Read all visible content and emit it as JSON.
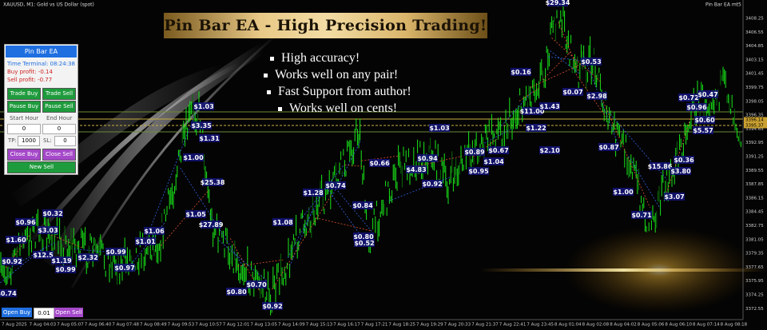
{
  "header": {
    "symbol": "XAUUSD, M1: Gold vs US Dollar (spot)",
    "ea_name": "Pin Bar EA mt5"
  },
  "banner": {
    "title": "Pin Bar EA - High Precision Trading!",
    "bullets": [
      "High accuracy!",
      "Works well on any pair!",
      "Fast Support from author!",
      "Works well on cents!"
    ]
  },
  "panel": {
    "title": "Pin Bar EA",
    "time_label": "Time Terminal:",
    "time": "08:24:38",
    "buy_profit_label": "Buy profit:",
    "buy_profit": "-0.14",
    "sell_profit_label": "Sell profit:",
    "sell_profit": "-0.77",
    "buttons": [
      "Trade Buy",
      "Trade Sell",
      "Pause Buy",
      "Pause Sell"
    ],
    "start_hour_label": "Start Hour",
    "end_hour_label": "End Hour",
    "start_hour": "0",
    "end_hour": "0",
    "tp_label": "TP:",
    "tp": "1000",
    "sl_label": "SL:",
    "sl": "0",
    "close_buy": "Close Buy",
    "close_sell": "Close Sell",
    "new_sell": "New Sell"
  },
  "bottom_bar": {
    "open_buy": "Open Buy",
    "lot": "0.01",
    "open_sell": "Open Sell"
  },
  "price_axis": [
    "3408.25",
    "3406.55",
    "3404.85",
    "3403.15",
    "3401.45",
    "3399.75",
    "3398.05",
    "3396.35",
    "3394.65",
    "3392.95",
    "3391.25",
    "3389.55",
    "3387.85",
    "3386.15",
    "3384.45",
    "3382.75",
    "3381.05",
    "3379.35",
    "3377.65",
    "3375.95",
    "3374.25",
    "3372.55"
  ],
  "price_tags": [
    "3396.14",
    "3395.37"
  ],
  "time_axis": [
    "7 Aug 2025",
    "7 Aug 04:03",
    "7 Aug 05:07",
    "7 Aug 06:40",
    "7 Aug 07:48",
    "7 Aug 08:49",
    "7 Aug 09:53",
    "7 Aug 10:57",
    "7 Aug 12:01",
    "7 Aug 13:05",
    "7 Aug 14:09",
    "7 Aug 15:13",
    "7 Aug 16:17",
    "7 Aug 17:21",
    "7 Aug 18:25",
    "7 Aug 19:29",
    "7 Aug 20:33",
    "7 Aug 21:37",
    "7 Aug 22:41",
    "7 Aug 23:45",
    "8 Aug 01:04",
    "8 Aug 02:08",
    "8 Aug 04:02",
    "8 Aug 05:06",
    "8 Aug 06:10",
    "8 Aug 07:14",
    "8 Aug 08:18"
  ],
  "trade_labels": [
    "$29.34",
    "$0.16",
    "$0.53",
    "$0.72",
    "$0.47",
    "$0.60",
    "$5.57",
    "$0.96",
    "$1.03",
    "$3.35",
    "$1.31",
    "$1.00",
    "$25.38",
    "$1.05",
    "$27.89",
    "$0.96",
    "$0.32",
    "$3.03",
    "$1.60",
    "$12.5",
    "$0.92",
    "$1.19",
    "$0.99",
    "$2.32",
    "$0.99",
    "$0.97",
    "$1.01",
    "$1.06",
    "$0.74",
    "$0.92",
    "$0.80",
    "$0.70",
    "$1.28",
    "$0.74",
    "$0.84",
    "$0.80",
    "$0.52",
    "$1.08",
    "$0.66",
    "$0.94",
    "$4.83",
    "$0.92",
    "$1.03",
    "$0.89",
    "$0.67",
    "$0.95",
    "$1.04",
    "$11.00",
    "$1.43",
    "$1.22",
    "$2.10",
    "$2.98",
    "$0.07",
    "$1.00",
    "$0.71",
    "$15.86",
    "$3.80",
    "$0.36",
    "$3.07",
    "$0.87"
  ]
}
